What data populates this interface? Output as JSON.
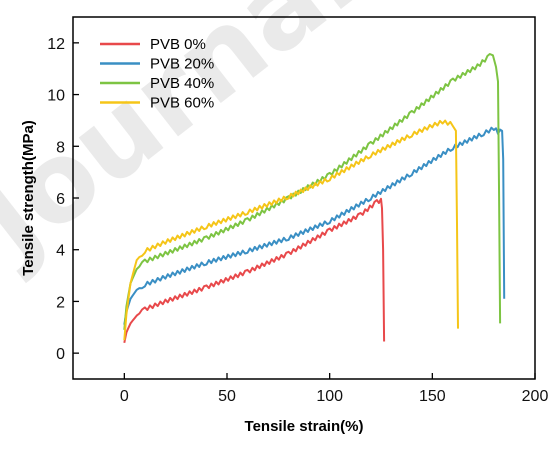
{
  "chart_data": {
    "type": "line",
    "title": "",
    "xlabel": "Tensile strain(%)",
    "ylabel": "Tensile strength(MPa)",
    "xlim": [
      -25,
      200
    ],
    "ylim": [
      -1,
      13
    ],
    "xticks": [
      0,
      50,
      100,
      150,
      200
    ],
    "yticks": [
      0,
      2,
      4,
      6,
      8,
      10,
      12
    ],
    "grid": false,
    "legend_position": "top-left",
    "series": [
      {
        "name": "PVB 0%",
        "color": "#e8494b",
        "points": [
          [
            0,
            0.4
          ],
          [
            1,
            0.8
          ],
          [
            3,
            1.15
          ],
          [
            6,
            1.45
          ],
          [
            10,
            1.7
          ],
          [
            20,
            2.0
          ],
          [
            40,
            2.55
          ],
          [
            60,
            3.15
          ],
          [
            80,
            3.85
          ],
          [
            100,
            4.75
          ],
          [
            115,
            5.35
          ],
          [
            123,
            5.85
          ],
          [
            125,
            5.9
          ],
          [
            125.5,
            5.6
          ],
          [
            126,
            4.0
          ],
          [
            126.5,
            0.45
          ]
        ]
      },
      {
        "name": "PVB 20%",
        "color": "#3a8fc4",
        "points": [
          [
            0,
            1.1
          ],
          [
            1,
            1.6
          ],
          [
            3,
            2.1
          ],
          [
            6,
            2.45
          ],
          [
            10,
            2.65
          ],
          [
            20,
            2.95
          ],
          [
            40,
            3.5
          ],
          [
            60,
            3.95
          ],
          [
            80,
            4.45
          ],
          [
            100,
            5.1
          ],
          [
            120,
            6.0
          ],
          [
            140,
            6.95
          ],
          [
            160,
            7.95
          ],
          [
            175,
            8.5
          ],
          [
            180,
            8.7
          ],
          [
            182,
            8.55
          ],
          [
            184,
            8.6
          ],
          [
            184.5,
            7.5
          ],
          [
            185,
            2.1
          ]
        ]
      },
      {
        "name": "PVB 40%",
        "color": "#7dc443",
        "points": [
          [
            0,
            0.9
          ],
          [
            1,
            1.8
          ],
          [
            3,
            2.7
          ],
          [
            6,
            3.25
          ],
          [
            10,
            3.55
          ],
          [
            20,
            3.85
          ],
          [
            40,
            4.45
          ],
          [
            60,
            5.15
          ],
          [
            80,
            6.0
          ],
          [
            100,
            6.9
          ],
          [
            120,
            8.1
          ],
          [
            140,
            9.3
          ],
          [
            160,
            10.55
          ],
          [
            172,
            11.1
          ],
          [
            178,
            11.5
          ],
          [
            179.5,
            11.45
          ],
          [
            181,
            11.0
          ],
          [
            182,
            10.5
          ],
          [
            182.5,
            6.0
          ],
          [
            183,
            1.15
          ]
        ]
      },
      {
        "name": "PVB 60%",
        "color": "#f5c518",
        "points": [
          [
            0,
            0.5
          ],
          [
            1,
            1.5
          ],
          [
            3,
            2.7
          ],
          [
            6,
            3.6
          ],
          [
            10,
            3.95
          ],
          [
            20,
            4.3
          ],
          [
            40,
            4.9
          ],
          [
            60,
            5.45
          ],
          [
            80,
            6.05
          ],
          [
            100,
            6.75
          ],
          [
            120,
            7.65
          ],
          [
            140,
            8.45
          ],
          [
            150,
            8.8
          ],
          [
            155,
            8.95
          ],
          [
            160,
            8.85
          ],
          [
            161.5,
            8.6
          ],
          [
            162,
            5.0
          ],
          [
            162.5,
            0.95
          ]
        ]
      }
    ]
  },
  "watermark": "Journal"
}
